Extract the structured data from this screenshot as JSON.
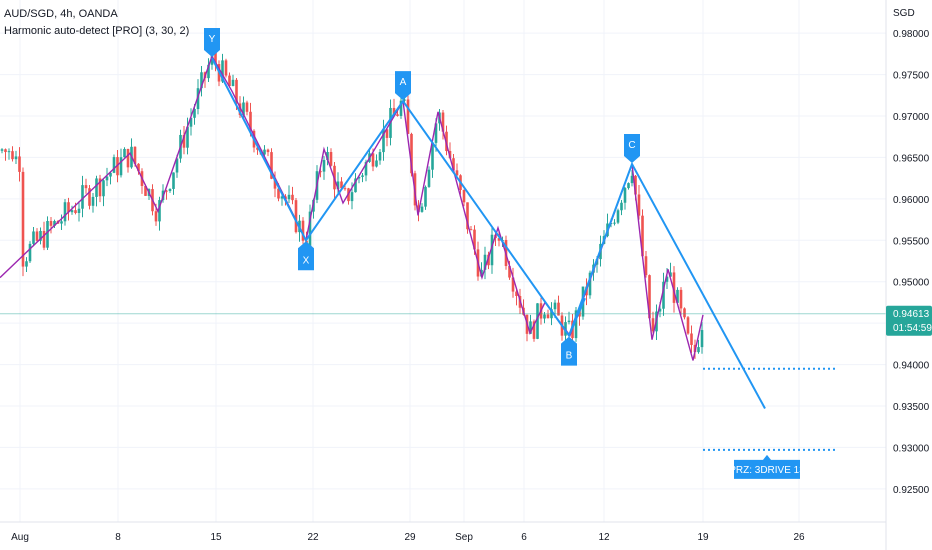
{
  "legend": {
    "symbol_line": "AUD/SGD, 4h, OANDA",
    "indicator_line": "Harmonic auto-detect [PRO] (3, 30, 2)"
  },
  "price_axis": {
    "currency": "SGD",
    "ticks": [
      "0.98000",
      "0.97500",
      "0.97000",
      "0.96500",
      "0.96000",
      "0.95500",
      "0.95000",
      "0.94500",
      "0.94000",
      "0.93500",
      "0.93000",
      "0.92500"
    ],
    "tick_values": [
      0.98,
      0.975,
      0.97,
      0.965,
      0.96,
      0.955,
      0.95,
      0.945,
      0.94,
      0.935,
      0.93,
      0.925
    ]
  },
  "current_price": {
    "price_label": "0.94613",
    "countdown": "01:54:59",
    "value": 0.94613,
    "color": "#26a69a"
  },
  "time_axis": {
    "labels": [
      "Aug",
      "8",
      "15",
      "22",
      "29",
      "Sep",
      "6",
      "12",
      "19",
      "26"
    ]
  },
  "pattern": {
    "color": "#2196f3",
    "inner_color": "#9c27b0",
    "points": [
      {
        "label": "Y",
        "price": 0.977
      },
      {
        "label": "X",
        "price": 0.955
      },
      {
        "label": "A",
        "price": 0.9718
      },
      {
        "label": "B",
        "price": 0.9435
      },
      {
        "label": "C",
        "price": 0.9642
      }
    ],
    "projection_end_price": 0.9347,
    "prz_levels": [
      0.9395,
      0.9297
    ],
    "prz_label": "PRZ: 3DRIVE 13"
  },
  "chart_data": {
    "type": "candlestick",
    "title": "AUD/SGD, 4h, OANDA",
    "y_range": [
      0.921,
      0.984
    ],
    "up_color": "#26a69a",
    "down_color": "#ef5350",
    "grid": true,
    "zigzag_prices": [
      0.9505,
      0.9655,
      0.9585,
      0.9772,
      0.973,
      0.955,
      0.966,
      0.9595,
      0.9718,
      0.958,
      0.9705,
      0.9505,
      0.9565,
      0.9438,
      0.9475,
      0.9435,
      0.9642,
      0.943,
      0.9515,
      0.9405,
      0.946
    ]
  }
}
